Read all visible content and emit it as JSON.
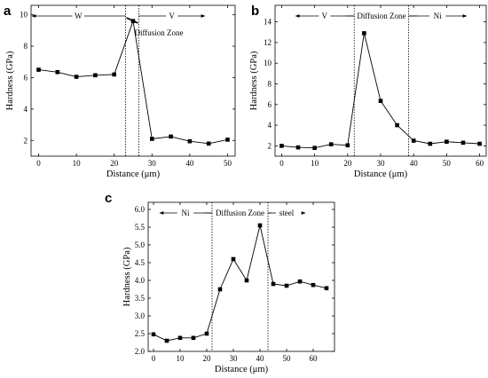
{
  "chart_data": [
    {
      "panel": "a",
      "type": "line",
      "xlabel": "Distance (μm)",
      "ylabel": "Hardness (GPa)",
      "xlim": [
        -2,
        52
      ],
      "ylim": [
        1,
        10.6
      ],
      "xticks": [
        0,
        10,
        20,
        30,
        40,
        50
      ],
      "yticks": [
        2,
        4,
        6,
        8,
        10
      ],
      "x": [
        0,
        5,
        10,
        15,
        20,
        25,
        30,
        35,
        40,
        45,
        50
      ],
      "y": [
        6.5,
        6.35,
        6.05,
        6.15,
        6.2,
        9.6,
        2.1,
        2.25,
        1.95,
        1.8,
        2.05
      ],
      "boundaries": [
        23,
        26.5
      ],
      "regions": [
        {
          "label": "W",
          "from": -2,
          "to": 23
        },
        {
          "label": "V",
          "from": 26.5,
          "to": 44
        }
      ],
      "annotation": "Diffusion Zone",
      "grid": false
    },
    {
      "panel": "b",
      "type": "line",
      "xlabel": "Distance (μm)",
      "ylabel": "Hardness (GPa)",
      "xlim": [
        -2,
        62
      ],
      "ylim": [
        1,
        15.6
      ],
      "xticks": [
        0,
        10,
        20,
        30,
        40,
        50,
        60
      ],
      "yticks": [
        2,
        4,
        6,
        8,
        10,
        12,
        14
      ],
      "x": [
        0,
        5,
        10,
        15,
        20,
        25,
        30,
        35,
        40,
        45,
        50,
        55,
        60
      ],
      "y": [
        2.0,
        1.85,
        1.8,
        2.15,
        2.05,
        12.9,
        6.35,
        4.0,
        2.5,
        2.2,
        2.4,
        2.3,
        2.2
      ],
      "boundaries": [
        22,
        38.5
      ],
      "regions": [
        {
          "label": "V",
          "from": 4,
          "to": 22
        },
        {
          "label": "Diffusion Zone",
          "from": 22,
          "to": 38.5
        },
        {
          "label": "Ni",
          "from": 38.5,
          "to": 56
        }
      ],
      "grid": false
    },
    {
      "panel": "c",
      "type": "line",
      "xlabel": "Distance (μm)",
      "ylabel": "Hardness (GPa)",
      "xlim": [
        -2,
        68
      ],
      "ylim": [
        2.0,
        6.2
      ],
      "xticks": [
        0,
        10,
        20,
        30,
        40,
        50,
        60
      ],
      "yticks": [
        "2.0",
        "2.5",
        "3.0",
        "3.5",
        "4.0",
        "4.5",
        "5.0",
        "5.5",
        "6.0"
      ],
      "x": [
        0,
        5,
        10,
        15,
        20,
        25,
        30,
        35,
        40,
        45,
        50,
        55,
        60,
        65
      ],
      "y": [
        2.48,
        2.3,
        2.38,
        2.38,
        2.5,
        3.75,
        4.6,
        4.0,
        5.55,
        3.9,
        3.85,
        3.97,
        3.87,
        3.78
      ],
      "boundaries": [
        22,
        43
      ],
      "regions": [
        {
          "label": "Ni",
          "from": 2,
          "to": 22
        },
        {
          "label": "Diffusion Zone",
          "from": 22,
          "to": 43
        },
        {
          "label": "steel",
          "from": 43,
          "to": 57
        }
      ],
      "grid": false
    }
  ]
}
